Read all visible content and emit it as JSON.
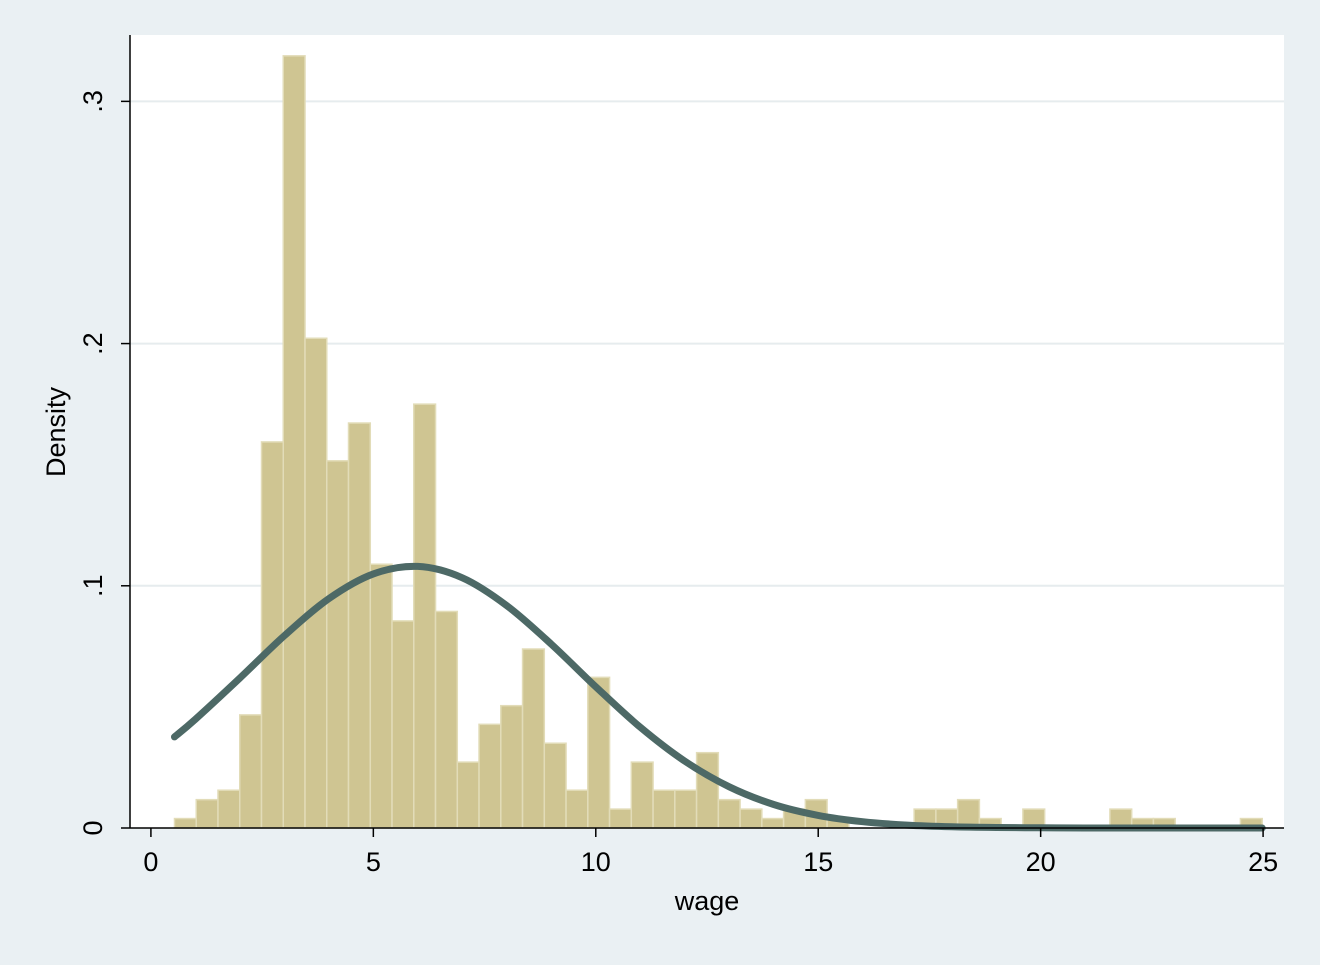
{
  "chart_data": {
    "type": "histogram",
    "x_label": "wage",
    "y_label": "Density",
    "bins": [
      0.53,
      1.019,
      1.508,
      1.997,
      2.486,
      2.975,
      3.464,
      3.953,
      4.442,
      4.931,
      5.42,
      5.909,
      6.398,
      6.887,
      7.376,
      7.865,
      8.354,
      8.843,
      9.332,
      9.821,
      10.31,
      10.799,
      11.288,
      11.777,
      12.266,
      12.755,
      13.244,
      13.733,
      14.222,
      14.711,
      15.2,
      15.689,
      16.178,
      16.667,
      17.156,
      17.645,
      18.134,
      18.623,
      19.112,
      19.601,
      20.09,
      20.579,
      21.068,
      21.557,
      22.046,
      22.535,
      23.024,
      23.513,
      24.002,
      24.491,
      24.98
    ],
    "values": [
      0.0039,
      0.0117,
      0.0156,
      0.0467,
      0.1594,
      0.3188,
      0.2022,
      0.1516,
      0.1672,
      0.1089,
      0.0855,
      0.175,
      0.0894,
      0.0272,
      0.0428,
      0.0505,
      0.0739,
      0.035,
      0.0156,
      0.0622,
      0.0078,
      0.0272,
      0.0156,
      0.0156,
      0.0311,
      0.0117,
      0.0078,
      0.0039,
      0.0078,
      0.0117,
      0.0039,
      0,
      0,
      0,
      0.0078,
      0.0078,
      0.0117,
      0.0039,
      0,
      0.0078,
      0,
      0,
      0,
      0.0078,
      0.0039,
      0.0039,
      0,
      0,
      0,
      0.0039
    ],
    "color": "#cfc592",
    "overlay": {
      "type": "line",
      "color": "#4d6966",
      "x": [
        0.53,
        1,
        2,
        3,
        4,
        5,
        6,
        7,
        8,
        9,
        10,
        11,
        12,
        13,
        14,
        15,
        16,
        17,
        18,
        19,
        20,
        21,
        22,
        23,
        24,
        24.98
      ],
      "values": [
        0.0376,
        0.0449,
        0.0619,
        0.0794,
        0.0947,
        0.1049,
        0.108,
        0.1033,
        0.0918,
        0.0759,
        0.0583,
        0.0416,
        0.0276,
        0.017,
        0.0097,
        0.0052,
        0.0026,
        0.0012,
        0.0005,
        0.0002,
        0.0001,
        0,
        0,
        0,
        0,
        0
      ]
    },
    "xlim": [
      -0.47,
      25.47
    ],
    "ylim": [
      0,
      0.3274
    ],
    "xticks": [
      0,
      5,
      10,
      15,
      20,
      25
    ],
    "yticks": [
      0,
      {
        "value": 0.1,
        "label": ".1"
      },
      {
        "value": 0.2,
        "label": ".2"
      },
      {
        "value": 0.3,
        "label": ".3"
      }
    ],
    "grid": true
  }
}
